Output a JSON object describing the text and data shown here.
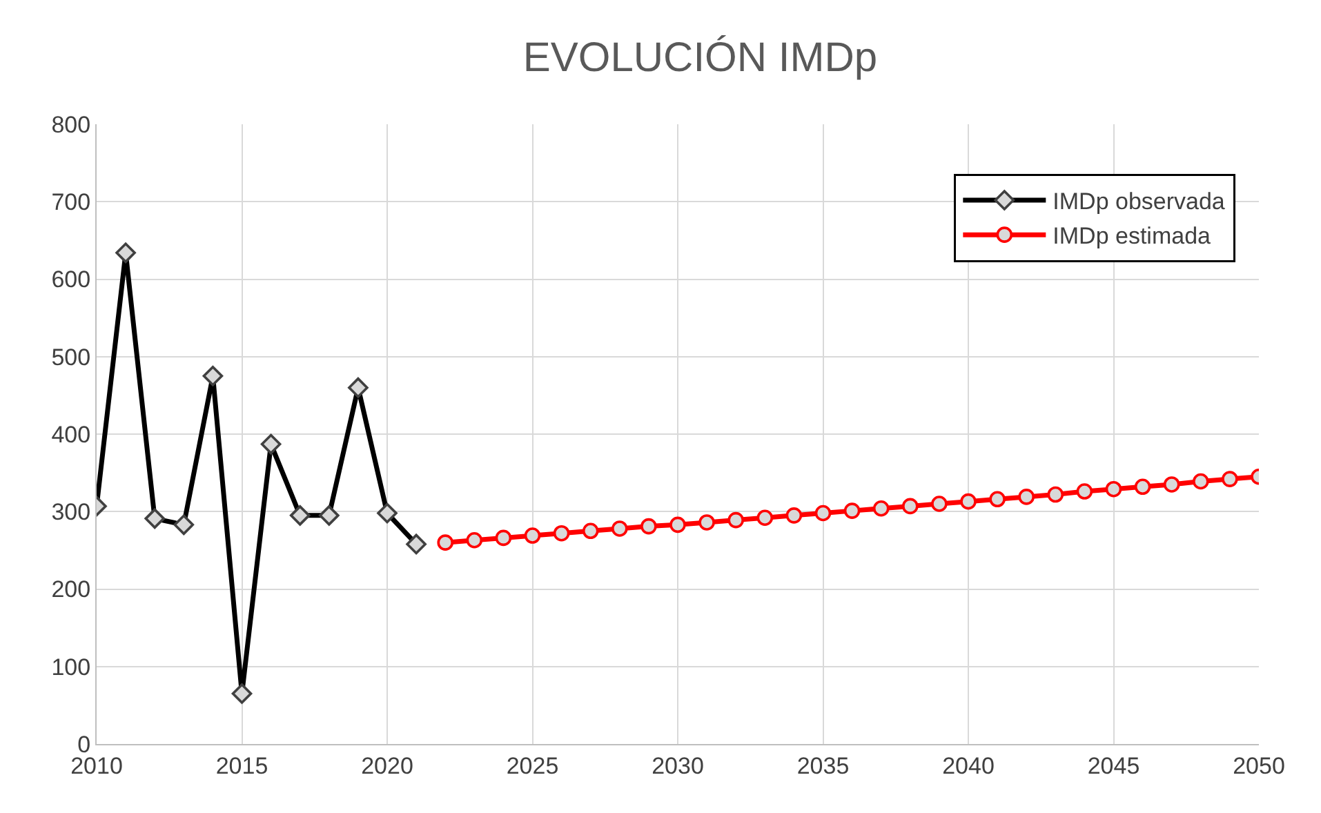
{
  "chart_data": {
    "type": "line",
    "title": "EVOLUCIÓN IMDp",
    "xlim": [
      2010,
      2050
    ],
    "xticks": [
      2010,
      2015,
      2020,
      2025,
      2030,
      2035,
      2040,
      2045,
      2050
    ],
    "ylim": [
      0,
      800
    ],
    "yticks": [
      0,
      100,
      200,
      300,
      400,
      500,
      600,
      700,
      800
    ],
    "grid": true,
    "legend": "top right",
    "series": [
      {
        "name": "IMDp observada",
        "color": "#000000",
        "marker": "diamond",
        "x": [
          2010,
          2011,
          2012,
          2013,
          2014,
          2015,
          2016,
          2017,
          2018,
          2019,
          2020,
          2021
        ],
        "values": [
          307,
          634,
          291,
          283,
          475,
          65,
          387,
          295,
          295,
          460,
          298,
          258
        ]
      },
      {
        "name": "IMDp estimada",
        "color": "#ff0000",
        "marker": "circle",
        "x": [
          2022,
          2023,
          2024,
          2025,
          2026,
          2027,
          2028,
          2029,
          2030,
          2031,
          2032,
          2033,
          2034,
          2035,
          2036,
          2037,
          2038,
          2039,
          2040,
          2041,
          2042,
          2043,
          2044,
          2045,
          2046,
          2047,
          2048,
          2049,
          2050
        ],
        "values": [
          260,
          263,
          266,
          269,
          272,
          275,
          278,
          281,
          283,
          286,
          289,
          292,
          295,
          298,
          301,
          304,
          307,
          310,
          313,
          316,
          319,
          322,
          326,
          329,
          332,
          335,
          339,
          342,
          345
        ]
      }
    ]
  }
}
